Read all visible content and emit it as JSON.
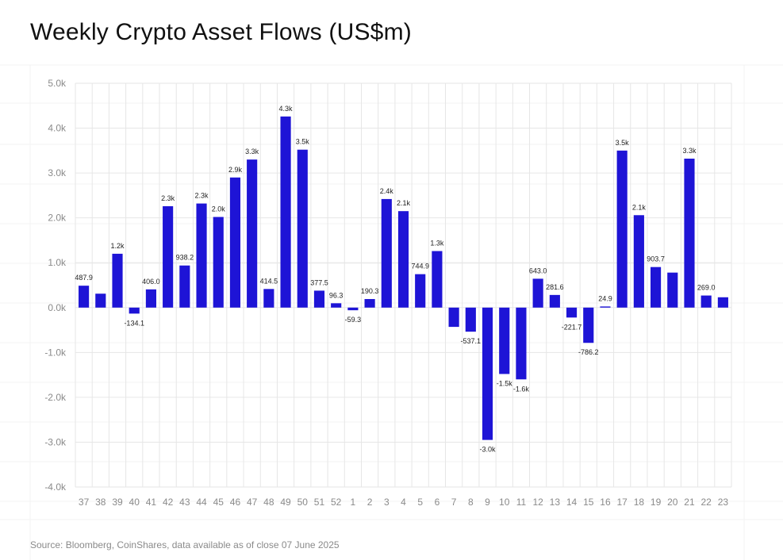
{
  "title": "Weekly Crypto Asset Flows (US$m)",
  "source": "Source: Bloomberg, CoinShares, data available as of close 07 June 2025",
  "colors": {
    "bar": "#1e14d6",
    "grid": "#e6e6e6",
    "axis_text": "#8a8a8a",
    "label_text": "#222222"
  },
  "chart_data": {
    "type": "bar",
    "title": "Weekly Crypto Asset Flows (US$m)",
    "xlabel": "",
    "ylabel": "",
    "ylim": [
      -4000,
      5000
    ],
    "yticks": [
      -4000,
      -3000,
      -2000,
      -1000,
      0,
      1000,
      2000,
      3000,
      4000,
      5000
    ],
    "ytick_labels": [
      "-4.0k",
      "-3.0k",
      "-2.0k",
      "-1.0k",
      "0.0k",
      "1.0k",
      "2.0k",
      "3.0k",
      "4.0k",
      "5.0k"
    ],
    "grid": true,
    "categories": [
      "37",
      "38",
      "39",
      "40",
      "41",
      "42",
      "43",
      "44",
      "45",
      "46",
      "47",
      "48",
      "49",
      "50",
      "51",
      "52",
      "1",
      "2",
      "3",
      "4",
      "5",
      "6",
      "7",
      "8",
      "9",
      "10",
      "11",
      "12",
      "13",
      "14",
      "15",
      "16",
      "17",
      "18",
      "19",
      "20",
      "21",
      "22",
      "23"
    ],
    "values": [
      487.9,
      310,
      1200,
      -134.1,
      406.0,
      2260,
      938.2,
      2320,
      2020,
      2900,
      3300,
      414.5,
      4260,
      3520,
      377.5,
      96.3,
      -59.3,
      190.3,
      2420,
      2150,
      744.9,
      1260,
      -430,
      -537.1,
      -2950,
      -1480,
      -1600,
      643.0,
      281.6,
      -221.7,
      -786.2,
      24.9,
      3500,
      2060,
      903.7,
      780,
      3320,
      269.0,
      230
    ],
    "data_labels": [
      "487.9",
      "",
      "1.2k",
      "-134.1",
      "406.0",
      "2.3k",
      "938.2",
      "2.3k",
      "2.0k",
      "2.9k",
      "3.3k",
      "414.5",
      "4.3k",
      "3.5k",
      "377.5",
      "96.3",
      "-59.3",
      "190.3",
      "2.4k",
      "2.1k",
      "744.9",
      "1.3k",
      "",
      "-537.1",
      "-3.0k",
      "-1.5k",
      "-1.6k",
      "643.0",
      "281.6",
      "-221.7",
      "-786.2",
      "24.9",
      "3.5k",
      "2.1k",
      "903.7",
      "",
      "3.3k",
      "269.0",
      ""
    ]
  }
}
